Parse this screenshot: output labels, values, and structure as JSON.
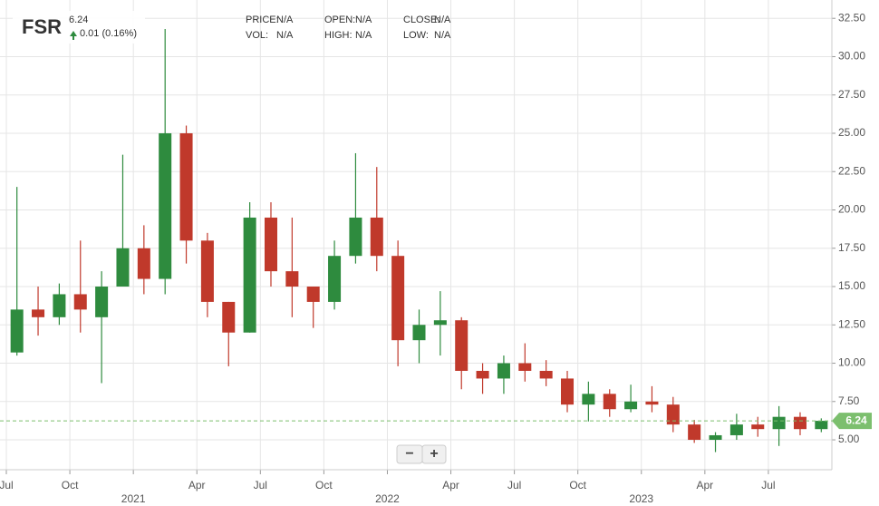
{
  "header": {
    "symbol": "FSR",
    "price": "6.24",
    "change": "0.01 (0.16%)",
    "info": [
      {
        "label": "PRICE:",
        "value": "N/A"
      },
      {
        "label": "OPEN:",
        "value": "N/A"
      },
      {
        "label": "CLOSE:",
        "value": "N/A"
      },
      {
        "label": "VOL:",
        "value": "N/A"
      },
      {
        "label": "HIGH:",
        "value": "N/A"
      },
      {
        "label": "LOW:",
        "value": "N/A"
      }
    ]
  },
  "controls": {
    "zoom_out": "−",
    "zoom_in": "+"
  },
  "chart_data": {
    "type": "candlestick",
    "x": [
      "2020-07",
      "2020-08",
      "2020-09",
      "2020-10",
      "2020-11",
      "2020-12",
      "2021-01",
      "2021-02",
      "2021-03",
      "2021-04",
      "2021-05",
      "2021-06",
      "2021-07",
      "2021-08",
      "2021-09",
      "2021-10",
      "2021-11",
      "2021-12",
      "2022-01",
      "2022-02",
      "2022-03",
      "2022-04",
      "2022-05",
      "2022-06",
      "2022-07",
      "2022-08",
      "2022-09",
      "2022-10",
      "2022-11",
      "2022-12",
      "2023-01",
      "2023-02",
      "2023-03",
      "2023-04",
      "2023-05",
      "2023-06",
      "2023-07",
      "2023-08",
      "2023-09"
    ],
    "open": [
      10.7,
      13.5,
      13,
      14.5,
      13,
      15,
      17.5,
      15.5,
      25,
      18,
      14,
      12,
      19.5,
      16,
      15,
      14,
      17,
      19.5,
      17,
      11.5,
      12.5,
      12.8,
      9.5,
      9,
      10,
      9.5,
      9,
      7.3,
      8,
      7,
      7.5,
      7.3,
      6,
      5,
      5.3,
      6,
      5.7,
      6.5,
      5.7
    ],
    "high": [
      21.5,
      15,
      15.2,
      18,
      16,
      23.6,
      19,
      31.8,
      25.5,
      18.5,
      14,
      20.5,
      20.5,
      19.5,
      15,
      18,
      23.7,
      22.8,
      18,
      13.5,
      14.7,
      13,
      10,
      10.5,
      11.3,
      10.2,
      9.5,
      8.8,
      8.3,
      8.6,
      8.5,
      7.8,
      6.3,
      5.5,
      6.7,
      6.5,
      7.2,
      6.8,
      6.4
    ],
    "low": [
      10.5,
      11.8,
      12.5,
      12,
      8.7,
      15,
      14.5,
      14.5,
      16.5,
      13,
      9.8,
      12,
      15,
      13,
      12.3,
      13.5,
      16.5,
      16,
      9.8,
      10,
      10.5,
      8.3,
      8,
      8,
      8.8,
      8.5,
      6.8,
      6.2,
      6.5,
      6.8,
      6.8,
      5.5,
      4.8,
      4.2,
      5,
      5.2,
      4.6,
      5.3,
      5.5
    ],
    "close": [
      13.5,
      13,
      14.5,
      13.5,
      15,
      17.5,
      15.5,
      25,
      18,
      14,
      12,
      19.5,
      16,
      15,
      14,
      17,
      19.5,
      17,
      11.5,
      12.5,
      12.8,
      9.5,
      9,
      10,
      9.5,
      9,
      7.3,
      8,
      7,
      7.5,
      7.3,
      6,
      5,
      5.3,
      6,
      5.7,
      6.5,
      5.7,
      6.24
    ],
    "up_color": "#2e8b3e",
    "down_color": "#c0392b",
    "last_price": 6.24,
    "last_price_color": "#7cbf6e",
    "xlim": [
      "2020-07",
      "2023-10"
    ],
    "xticks": [
      {
        "value": "2020-07",
        "label": "Jul"
      },
      {
        "value": "2020-10",
        "label": "Oct"
      },
      {
        "value": "2021-01",
        "label": "2021"
      },
      {
        "value": "2021-04",
        "label": "Apr"
      },
      {
        "value": "2021-07",
        "label": "Jul"
      },
      {
        "value": "2021-10",
        "label": "Oct"
      },
      {
        "value": "2022-01",
        "label": "2022"
      },
      {
        "value": "2022-04",
        "label": "Apr"
      },
      {
        "value": "2022-07",
        "label": "Jul"
      },
      {
        "value": "2022-10",
        "label": "Oct"
      },
      {
        "value": "2023-01",
        "label": "2023"
      },
      {
        "value": "2023-04",
        "label": "Apr"
      },
      {
        "value": "2023-07",
        "label": "Jul"
      }
    ],
    "ylim": [
      3.05,
      33.4
    ],
    "yticks": [
      {
        "value": 5,
        "label": "5.00"
      },
      {
        "value": 7.5,
        "label": "7.50"
      },
      {
        "value": 10,
        "label": "10.00"
      },
      {
        "value": 12.5,
        "label": "12.50"
      },
      {
        "value": 15,
        "label": "15.00"
      },
      {
        "value": 17.5,
        "label": "17.50"
      },
      {
        "value": 20,
        "label": "20.00"
      },
      {
        "value": 22.5,
        "label": "22.50"
      },
      {
        "value": 25,
        "label": "25.00"
      },
      {
        "value": 27.5,
        "label": "27.50"
      },
      {
        "value": 30,
        "label": "30.00"
      },
      {
        "value": 32.5,
        "label": "32.50"
      }
    ],
    "grid": true
  }
}
